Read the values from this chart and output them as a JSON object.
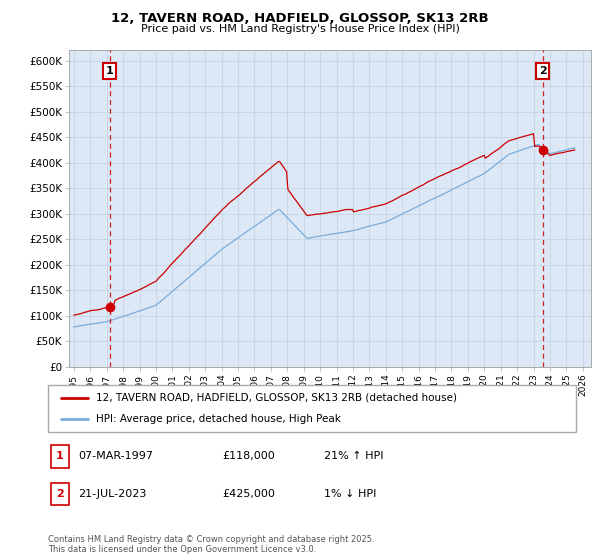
{
  "title1": "12, TAVERN ROAD, HADFIELD, GLOSSOP, SK13 2RB",
  "title2": "Price paid vs. HM Land Registry's House Price Index (HPI)",
  "ylabel_ticks": [
    "£0",
    "£50K",
    "£100K",
    "£150K",
    "£200K",
    "£250K",
    "£300K",
    "£350K",
    "£400K",
    "£450K",
    "£500K",
    "£550K",
    "£600K"
  ],
  "ytick_values": [
    0,
    50000,
    100000,
    150000,
    200000,
    250000,
    300000,
    350000,
    400000,
    450000,
    500000,
    550000,
    600000
  ],
  "ylim": [
    0,
    620000
  ],
  "xlim_start": 1994.7,
  "xlim_end": 2026.5,
  "xticks": [
    1995,
    1996,
    1997,
    1998,
    1999,
    2000,
    2001,
    2002,
    2003,
    2004,
    2005,
    2006,
    2007,
    2008,
    2009,
    2010,
    2011,
    2012,
    2013,
    2014,
    2015,
    2016,
    2017,
    2018,
    2019,
    2020,
    2021,
    2022,
    2023,
    2024,
    2025,
    2026
  ],
  "sale1_x": 1997.18,
  "sale1_y": 118000,
  "sale2_x": 2023.55,
  "sale2_y": 425000,
  "sale1_label": "1",
  "sale2_label": "2",
  "legend_line1": "12, TAVERN ROAD, HADFIELD, GLOSSOP, SK13 2RB (detached house)",
  "legend_line2": "HPI: Average price, detached house, High Peak",
  "table_row1": [
    "1",
    "07-MAR-1997",
    "£118,000",
    "21% ↑ HPI"
  ],
  "table_row2": [
    "2",
    "21-JUL-2023",
    "£425,000",
    "1% ↓ HPI"
  ],
  "footer": "Contains HM Land Registry data © Crown copyright and database right 2025.\nThis data is licensed under the Open Government Licence v3.0.",
  "red_color": "#cc0000",
  "blue_color": "#7aacdc",
  "chart_bg": "#dce8f5",
  "bg_color": "#ffffff",
  "grid_color": "#c0cfe0"
}
